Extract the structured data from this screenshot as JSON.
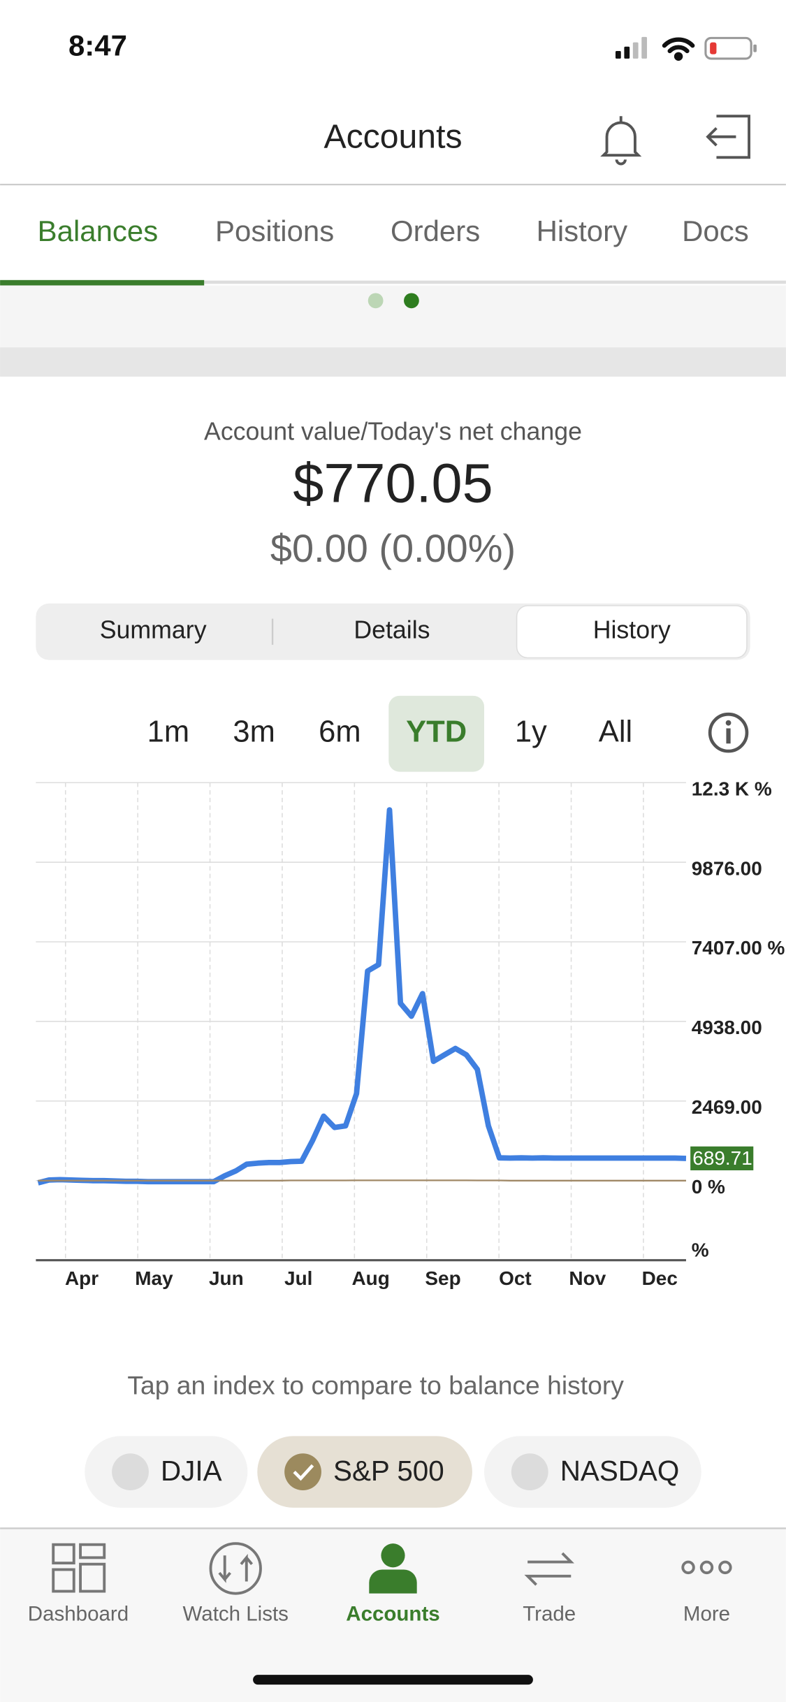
{
  "status": {
    "time": "8:47"
  },
  "nav": {
    "title": "Accounts"
  },
  "tabs": [
    "Balances",
    "Positions",
    "Orders",
    "History",
    "Docs"
  ],
  "account": {
    "label": "Account value/Today's net change",
    "value": "$770.05",
    "change": "$0.00 (0.00%)"
  },
  "segments": [
    "Summary",
    "Details",
    "History"
  ],
  "ranges": [
    "1m",
    "3m",
    "6m",
    "YTD",
    "1y",
    "All"
  ],
  "chart": {
    "type": "line",
    "categories": [
      "Apr",
      "May",
      "Jun",
      "Jul",
      "Aug",
      "Sep",
      "Oct",
      "Nov",
      "Dec"
    ],
    "ylim": [
      -2469,
      12345
    ],
    "yticks": [
      {
        "value": 12345,
        "label": "12.3 K %"
      },
      {
        "value": 9876,
        "label": "9876.00"
      },
      {
        "value": 7407,
        "label": "7407.00 %"
      },
      {
        "value": 4938,
        "label": "4938.00"
      },
      {
        "value": 2469,
        "label": "2469.00"
      },
      {
        "value": 0,
        "label": "0 %"
      },
      {
        "value": -2469,
        "label": "%"
      }
    ],
    "grid": true,
    "series": [
      {
        "color": "#3f7fe0",
        "values": [
          -67,
          20,
          30,
          20,
          10,
          0,
          0,
          -10,
          -20,
          -20,
          -30,
          -30,
          -30,
          -30,
          -30,
          -30,
          -30,
          150,
          300,
          510,
          540,
          560,
          560,
          590,
          600,
          1250,
          2000,
          1650,
          1700,
          2700,
          6500,
          6700,
          11500,
          5500,
          5100,
          5800,
          3700,
          3900,
          4100,
          3900,
          3450,
          1700,
          706,
          700,
          706,
          700,
          706,
          700,
          700,
          700,
          700,
          700,
          700,
          700,
          700,
          700,
          700,
          700,
          700,
          689.71
        ],
        "value_labels": [
          null,
          null,
          null,
          null,
          null,
          null,
          null,
          null,
          null,
          null,
          null,
          null,
          null,
          null,
          null,
          null,
          null,
          null,
          null,
          null,
          null,
          null,
          null,
          null,
          null,
          null,
          null,
          null,
          null,
          null,
          null,
          null,
          null,
          null,
          null,
          null,
          null,
          null,
          null,
          null,
          null,
          null,
          null,
          null,
          null,
          null,
          null,
          null,
          null,
          null,
          null,
          null,
          null,
          null,
          null,
          null,
          null,
          null,
          null,
          "689.71"
        ]
      },
      {
        "color": "#a08866",
        "values": [
          0,
          0,
          0,
          0,
          0,
          0,
          0,
          0,
          0,
          0,
          0,
          0,
          0,
          0,
          0,
          0,
          0,
          0,
          0,
          0,
          0,
          0,
          0,
          5,
          5,
          5,
          5,
          5,
          5,
          10,
          10,
          10,
          10,
          10,
          10,
          10,
          10,
          10,
          10,
          10,
          5,
          5,
          5,
          0,
          0,
          0,
          0,
          0,
          0,
          0,
          0,
          0,
          0,
          0,
          0,
          0,
          0,
          0,
          0,
          0
        ]
      }
    ]
  },
  "compare": {
    "prompt": "Tap an index to compare to balance history"
  },
  "indexes": [
    "DJIA",
    "S&P 500",
    "NASDAQ"
  ],
  "bottom_nav": [
    "Dashboard",
    "Watch Lists",
    "Accounts",
    "Trade",
    "More"
  ]
}
